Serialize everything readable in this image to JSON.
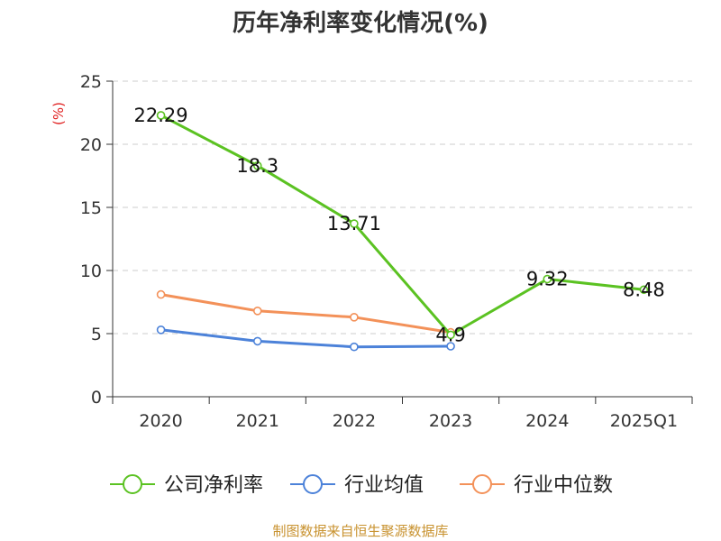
{
  "chart_data": {
    "type": "line",
    "title": "历年净利率变化情况(%)",
    "ylabel": "(%)",
    "xlabel": "",
    "categories": [
      "2020",
      "2021",
      "2022",
      "2023",
      "2024",
      "2025Q1"
    ],
    "ylim": [
      0,
      25
    ],
    "yticks": [
      0,
      5,
      10,
      15,
      20,
      25
    ],
    "grid": true,
    "legend_position": "bottom",
    "series": [
      {
        "name": "公司净利率",
        "color": "#5bc222",
        "values": [
          22.29,
          18.3,
          13.71,
          4.9,
          9.32,
          8.48
        ],
        "labels": [
          "22.29",
          "18.3",
          "13.71",
          "4.9",
          "9.32",
          "8.48"
        ]
      },
      {
        "name": "行业均值",
        "color": "#4c82d9",
        "values": [
          5.3,
          4.4,
          3.95,
          4.0,
          null,
          null
        ]
      },
      {
        "name": "行业中位数",
        "color": "#f39159",
        "values": [
          8.1,
          6.8,
          6.3,
          5.1,
          null,
          null
        ]
      }
    ],
    "source": "制图数据来自恒生聚源数据库"
  }
}
